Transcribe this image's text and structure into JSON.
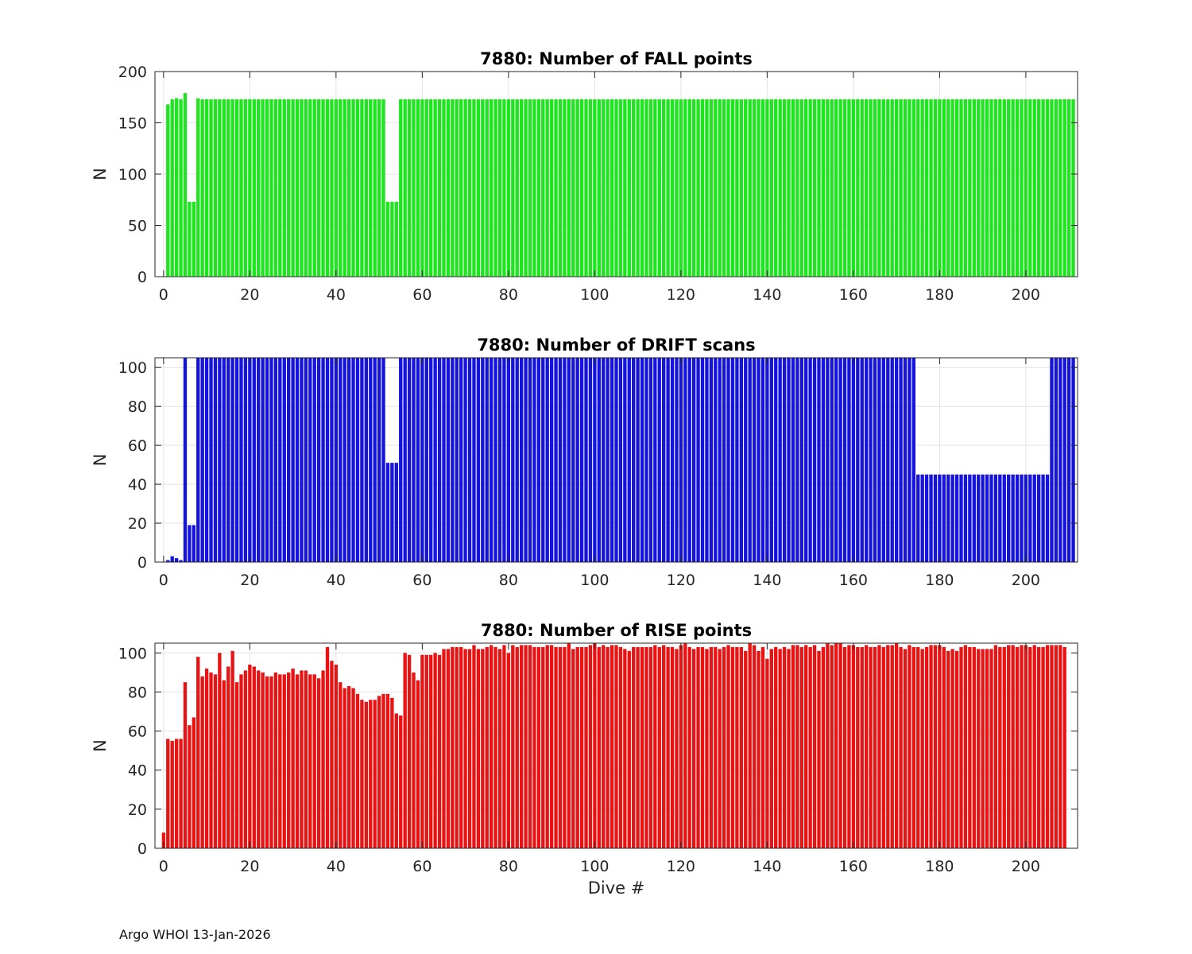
{
  "footer": "Argo WHOI 13-Jan-2026",
  "colors": {
    "fall": "#1ee61e",
    "drift": "#1414dc",
    "rise": "#e81414",
    "grid": "#e3e3e3",
    "axis": "#262626"
  },
  "chart_data": [
    {
      "type": "bar",
      "title": "7880: Number of FALL points",
      "xlabel": "",
      "ylabel": "N",
      "xlim": [
        -2,
        212
      ],
      "ylim": [
        0,
        200
      ],
      "xticks": [
        0,
        20,
        40,
        60,
        80,
        100,
        120,
        140,
        160,
        180,
        200
      ],
      "yticks": [
        0,
        50,
        100,
        150,
        200
      ],
      "grid": true,
      "segments": [
        [
          1,
          1,
          168
        ],
        [
          2,
          2,
          173
        ],
        [
          3,
          3,
          174
        ],
        [
          4,
          4,
          173
        ],
        [
          5,
          5,
          179
        ],
        [
          6,
          7,
          73
        ],
        [
          8,
          8,
          174
        ],
        [
          9,
          51,
          173
        ],
        [
          52,
          54,
          73
        ],
        [
          55,
          211,
          173
        ]
      ]
    },
    {
      "type": "bar",
      "title": "7880: Number of DRIFT scans",
      "xlabel": "",
      "ylabel": "N",
      "xlim": [
        -2,
        212
      ],
      "ylim": [
        0,
        105
      ],
      "xticks": [
        0,
        20,
        40,
        60,
        80,
        100,
        120,
        140,
        160,
        180,
        200
      ],
      "yticks": [
        0,
        20,
        40,
        60,
        80,
        100
      ],
      "grid": true,
      "segments": [
        [
          1,
          1,
          1
        ],
        [
          2,
          2,
          3
        ],
        [
          3,
          3,
          2
        ],
        [
          4,
          4,
          1
        ],
        [
          5,
          5,
          105
        ],
        [
          6,
          7,
          19
        ],
        [
          8,
          51,
          105
        ],
        [
          52,
          54,
          51
        ],
        [
          55,
          174,
          105
        ],
        [
          175,
          205,
          45
        ],
        [
          206,
          211,
          105
        ]
      ]
    },
    {
      "type": "bar",
      "title": "7880: Number of RISE points",
      "xlabel": "Dive #",
      "ylabel": "N",
      "xlim": [
        -2,
        212
      ],
      "ylim": [
        0,
        105
      ],
      "xticks": [
        0,
        20,
        40,
        60,
        80,
        100,
        120,
        140,
        160,
        180,
        200
      ],
      "yticks": [
        0,
        20,
        40,
        60,
        80,
        100
      ],
      "grid": true,
      "values": [
        8,
        56,
        55,
        56,
        56,
        85,
        63,
        67,
        98,
        88,
        92,
        90,
        89,
        100,
        86,
        93,
        101,
        85,
        89,
        91,
        94,
        93,
        91,
        90,
        88,
        88,
        90,
        89,
        89,
        90,
        92,
        89,
        91,
        91,
        89,
        89,
        87,
        91,
        103,
        96,
        94,
        85,
        82,
        83,
        82,
        79,
        76,
        75,
        76,
        76,
        78,
        79,
        79,
        77,
        69,
        68,
        100,
        99,
        90,
        86,
        99,
        99,
        99,
        100,
        99,
        102,
        102,
        103,
        103,
        103,
        102,
        102,
        104,
        102,
        102,
        103,
        104,
        103,
        102,
        104,
        100,
        104,
        103,
        104,
        104,
        104,
        103,
        103,
        103,
        104,
        104,
        103,
        103,
        103,
        105,
        102,
        103,
        103,
        103,
        104,
        105,
        103,
        104,
        103,
        104,
        104,
        103,
        102,
        101,
        103,
        103,
        103,
        103,
        103,
        104,
        103,
        104,
        103,
        103,
        102,
        104,
        105,
        103,
        102,
        103,
        103,
        102,
        103,
        103,
        102,
        103,
        104,
        103,
        103,
        103,
        101,
        105,
        104,
        101,
        103,
        97,
        102,
        103,
        102,
        103,
        102,
        104,
        104,
        103,
        104,
        103,
        104,
        101,
        103,
        106,
        104,
        105,
        105,
        103,
        104,
        104,
        103,
        103,
        104,
        103,
        103,
        104,
        103,
        104,
        104,
        105,
        103,
        102,
        104,
        103,
        103,
        102,
        103,
        104,
        104,
        104,
        103,
        101,
        102,
        101,
        103,
        104,
        103,
        103,
        102,
        102,
        102,
        102,
        104,
        103,
        103,
        104,
        104,
        103,
        104,
        104,
        103,
        104,
        103,
        103,
        104,
        104,
        104,
        104,
        103
      ]
    }
  ]
}
